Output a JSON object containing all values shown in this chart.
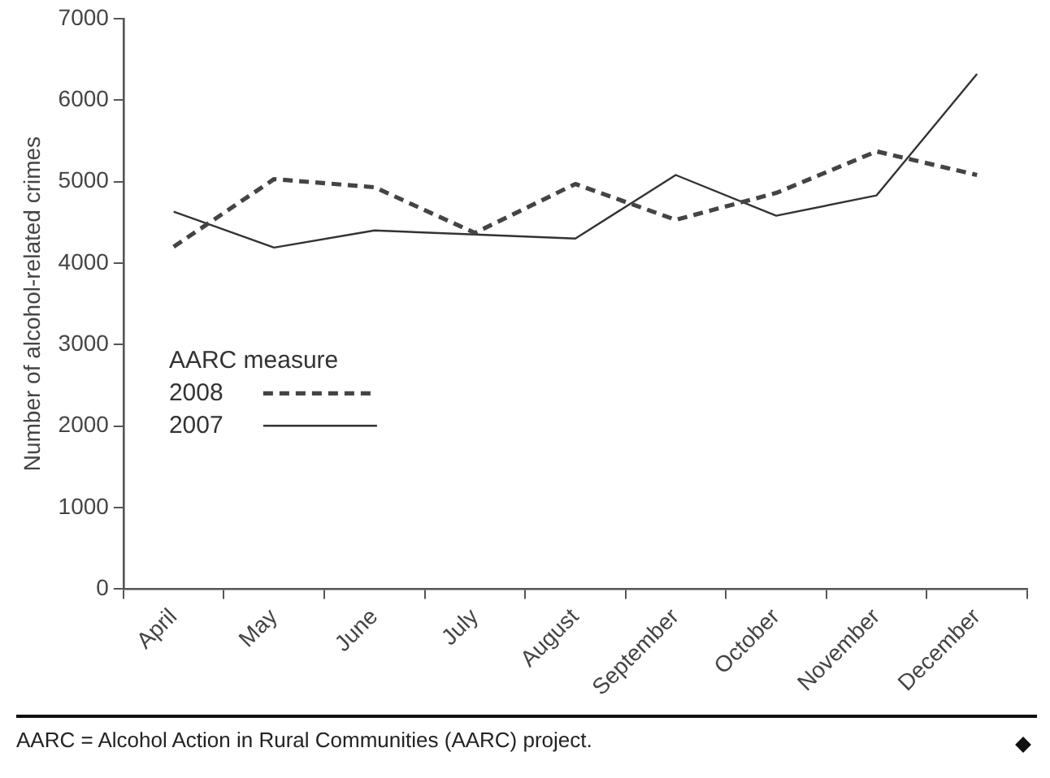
{
  "chart_data": {
    "type": "line",
    "ylabel": "Number of alcohol-related crimes",
    "categories": [
      "April",
      "May",
      "June",
      "July",
      "August",
      "September",
      "October",
      "November",
      "December"
    ],
    "series": [
      {
        "name": "2008",
        "color": "#444444",
        "line_style": "dashed",
        "values": [
          4200,
          5030,
          4930,
          4370,
          4970,
          4530,
          4860,
          5370,
          5080
        ]
      },
      {
        "name": "2007",
        "color": "#333333",
        "line_style": "solid",
        "values": [
          4630,
          4190,
          4400,
          4350,
          4300,
          5080,
          4580,
          4830,
          6320
        ]
      }
    ],
    "ylim": [
      0,
      7000
    ],
    "yticks": [
      0,
      1000,
      2000,
      3000,
      4000,
      5000,
      6000,
      7000
    ],
    "grid": false,
    "legend": "center left",
    "legend_title": "AARC measure",
    "marker": "none",
    "annotations": [
      "AARC = Alcohol Action in Rural Communities (AARC) project."
    ]
  }
}
